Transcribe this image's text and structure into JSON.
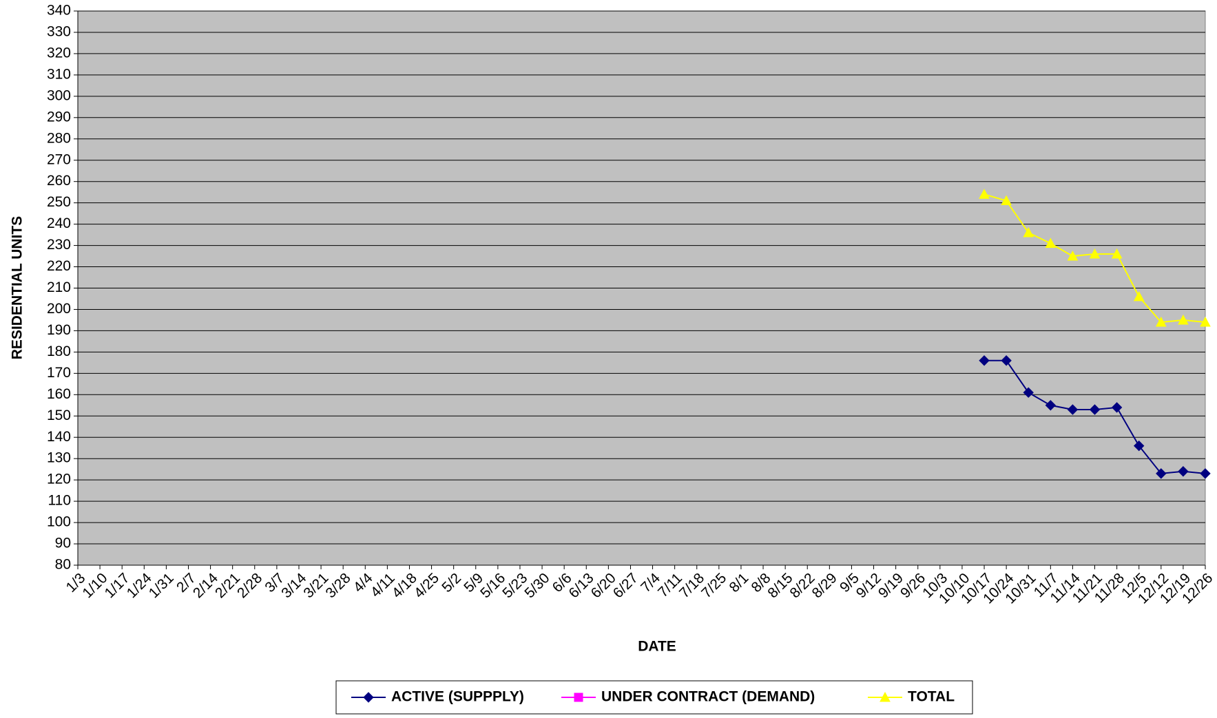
{
  "chart_data": {
    "type": "line",
    "y_label": "RESIDENTIAL UNITS",
    "x_label": "DATE",
    "categories": [
      "1/3",
      "1/10",
      "1/17",
      "1/24",
      "1/31",
      "2/7",
      "2/14",
      "2/21",
      "2/28",
      "3/7",
      "3/14",
      "3/21",
      "3/28",
      "4/4",
      "4/11",
      "4/18",
      "4/25",
      "5/2",
      "5/9",
      "5/16",
      "5/23",
      "5/30",
      "6/6",
      "6/13",
      "6/20",
      "6/27",
      "7/4",
      "7/11",
      "7/18",
      "7/25",
      "8/1",
      "8/8",
      "8/15",
      "8/22",
      "8/29",
      "9/5",
      "9/12",
      "9/19",
      "9/26",
      "10/3",
      "10/10",
      "10/17",
      "10/24",
      "10/31",
      "11/7",
      "11/14",
      "11/21",
      "11/28",
      "12/5",
      "12/12",
      "12/19",
      "12/26"
    ],
    "series": [
      {
        "name": "ACTIVE (SUPPPLY)",
        "color": "#000080",
        "marker": "diamond",
        "values": [
          null,
          null,
          null,
          null,
          null,
          null,
          null,
          null,
          null,
          null,
          null,
          null,
          null,
          null,
          null,
          null,
          null,
          null,
          null,
          null,
          null,
          null,
          null,
          null,
          null,
          null,
          null,
          null,
          null,
          null,
          null,
          null,
          null,
          null,
          null,
          null,
          null,
          null,
          null,
          null,
          null,
          176,
          176,
          161,
          155,
          153,
          153,
          154,
          136,
          123,
          124,
          123
        ]
      },
      {
        "name": "UNDER CONTRACT (DEMAND)",
        "color": "#ff00ff",
        "marker": "square",
        "values": [
          null,
          null,
          null,
          null,
          null,
          null,
          null,
          null,
          null,
          null,
          null,
          null,
          null,
          null,
          null,
          null,
          null,
          null,
          null,
          null,
          null,
          null,
          null,
          null,
          null,
          null,
          null,
          null,
          null,
          null,
          null,
          null,
          null,
          null,
          null,
          null,
          null,
          null,
          null,
          null,
          null,
          null,
          null,
          null,
          null,
          null,
          null,
          null,
          null,
          null,
          null,
          null
        ]
      },
      {
        "name": "TOTAL",
        "color": "#ffff00",
        "marker": "triangle",
        "values": [
          null,
          null,
          null,
          null,
          null,
          null,
          null,
          null,
          null,
          null,
          null,
          null,
          null,
          null,
          null,
          null,
          null,
          null,
          null,
          null,
          null,
          null,
          null,
          null,
          null,
          null,
          null,
          null,
          null,
          null,
          null,
          null,
          null,
          null,
          null,
          null,
          null,
          null,
          null,
          null,
          null,
          254,
          251,
          236,
          231,
          225,
          226,
          226,
          206,
          194,
          195,
          194
        ]
      }
    ],
    "ylim": [
      80,
      340
    ],
    "yticks": [
      80,
      90,
      100,
      110,
      120,
      130,
      140,
      150,
      160,
      170,
      180,
      190,
      200,
      210,
      220,
      230,
      240,
      250,
      260,
      270,
      280,
      290,
      300,
      310,
      320,
      330,
      340
    ],
    "grid": true,
    "legend": "bottom"
  }
}
